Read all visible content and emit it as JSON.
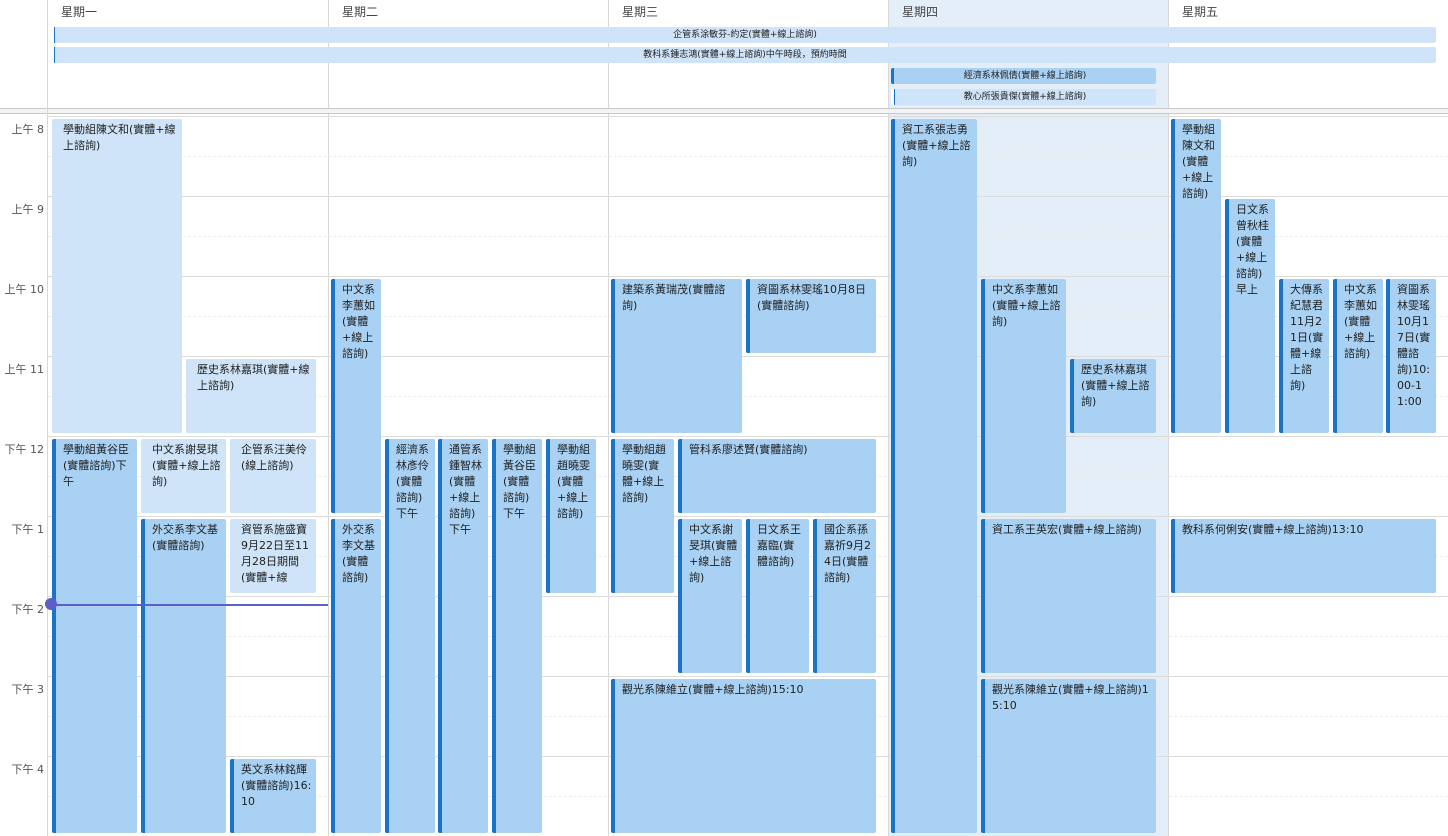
{
  "days": [
    "星期一",
    "星期二",
    "星期三",
    "星期四",
    "星期五"
  ],
  "times": [
    "上午 8",
    "上午 9",
    "上午 10",
    "上午 11",
    "下午 12",
    "下午 1",
    "下午 2",
    "下午 3",
    "下午 4"
  ],
  "all_day": [
    "企管系涂敏芬-約定(實體+線上諮詢)",
    "教科系鍾志鴻(實體+線上諮詢)中午時段，預約時間",
    "經濟系林佩倩(實體+線上諮詢)",
    "教心所張貴傑(實體+線上諮詢)"
  ],
  "events": [
    "學動組陳文和(實體+線上諮詢)",
    "歷史系林嘉琪(實體+線上諮詢)",
    "學動組黃谷臣(實體諮詢)下午",
    "中文系謝旻琪(實體+線上諮詢)",
    "企管系汪美伶(線上諮詢)",
    "外交系李文基(實體諮詢)",
    "資管系施盛寶9月22日至11月28日期間(實體+線",
    "英文系林銘輝(實體諮詢)16:10",
    "中文系李蕙如(實體+線上諮詢)",
    "外交系李文基(實體諮詢)",
    "經濟系林彥伶(實體諮詢)下午",
    "通管系鍾智林(實體+線上諮詢)下午",
    "學動組黃谷臣(實體諮詢)下午",
    "學動組趙曉雯(實體+線上諮詢)",
    "建築系黃瑞茂(實體諮詢)",
    "資圖系林雯瑤10月8日(實體諮詢)",
    "學動組趙曉雯(實體+線上諮詢)",
    "管科系廖述賢(實體諮詢)",
    "中文系謝旻琪(實體+線上諮詢)",
    "日文系王嘉臨(實體諮詢)",
    "國企系孫嘉祈9月24日(實體諮詢)",
    "觀光系陳維立(實體+線上諮詢)15:10",
    "資工系張志勇(實體+線上諮詢)",
    "中文系李蕙如(實體+線上諮詢)",
    "歷史系林嘉琪(實體+線上諮詢)",
    "資工系王英宏(實體+線上諮詢)",
    "觀光系陳維立(實體+線上諮詢)15:10",
    "學動組陳文和(實體+線上諮詢)",
    "日文系曾秋桂(實體+線上諮詢)早上",
    "大傳系紀慧君11月21日(實體+線上諮詢)",
    "中文系李蕙如(實體+線上諮詢)",
    "資圖系林雯瑤10月17日(實體諮詢)10:00-11:00",
    "教科系何俐安(實體+線上諮詢)13:10"
  ]
}
